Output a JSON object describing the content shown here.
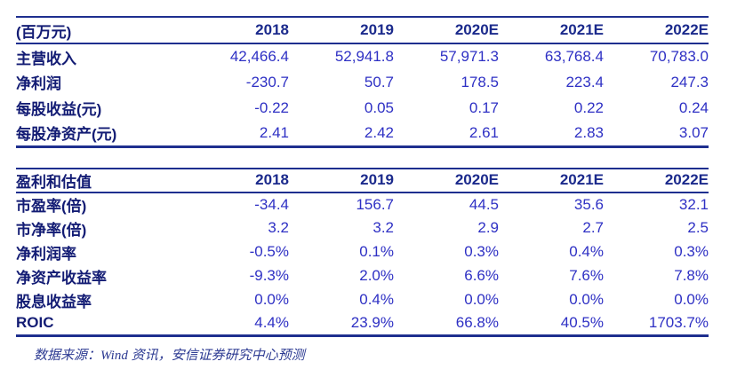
{
  "colors": {
    "border": "#1e2f8f",
    "header_text": "#1b2a8c",
    "label_text": "#131c74",
    "number_text": "#2e30c4",
    "footer_text": "#2c3a92",
    "background": "#ffffff"
  },
  "table1": {
    "header": [
      "(百万元)",
      "2018",
      "2019",
      "2020E",
      "2021E",
      "2022E"
    ],
    "rows": [
      {
        "label": "主营收入",
        "values": [
          "42,466.4",
          "52,941.8",
          "57,971.3",
          "63,768.4",
          "70,783.0"
        ]
      },
      {
        "label": "净利润",
        "values": [
          "-230.7",
          "50.7",
          "178.5",
          "223.4",
          "247.3"
        ]
      },
      {
        "label": "每股收益(元)",
        "values": [
          "-0.22",
          "0.05",
          "0.17",
          "0.22",
          "0.24"
        ]
      },
      {
        "label": "每股净资产(元)",
        "values": [
          "2.41",
          "2.42",
          "2.61",
          "2.83",
          "3.07"
        ]
      }
    ]
  },
  "table2": {
    "header": [
      "盈利和估值",
      "2018",
      "2019",
      "2020E",
      "2021E",
      "2022E"
    ],
    "rows": [
      {
        "label": "市盈率(倍)",
        "values": [
          "-34.4",
          "156.7",
          "44.5",
          "35.6",
          "32.1"
        ]
      },
      {
        "label": "市净率(倍)",
        "values": [
          "3.2",
          "3.2",
          "2.9",
          "2.7",
          "2.5"
        ]
      },
      {
        "label": "净利润率",
        "values": [
          "-0.5%",
          "0.1%",
          "0.3%",
          "0.4%",
          "0.3%"
        ]
      },
      {
        "label": "净资产收益率",
        "values": [
          "-9.3%",
          "2.0%",
          "6.6%",
          "7.6%",
          "7.8%"
        ]
      },
      {
        "label": "股息收益率",
        "values": [
          "0.0%",
          "0.4%",
          "0.0%",
          "0.0%",
          "0.0%"
        ]
      },
      {
        "label": "ROIC",
        "values": [
          "4.4%",
          "23.9%",
          "66.8%",
          "40.5%",
          "1703.7%"
        ]
      }
    ]
  },
  "footer": {
    "source_note": "数据来源：Wind 资讯，安信证券研究中心预测"
  }
}
